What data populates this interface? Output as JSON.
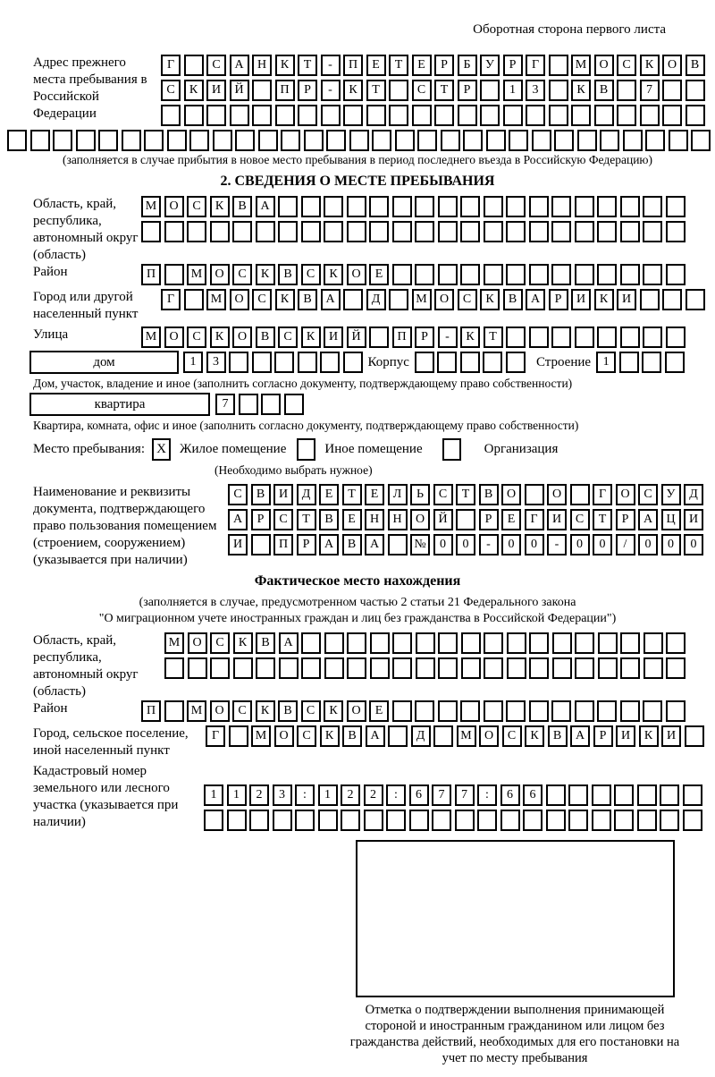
{
  "header": {
    "page_note": "Оборотная сторона первого листа"
  },
  "prev_address": {
    "label": "Адрес прежнего места пребывания в Российской Федерации",
    "rows": [
      {
        "text": "Г САНКТ-ПЕТЕРБУРГ МОСКОВ",
        "cells": 24
      },
      {
        "text": "СКИЙ ПР-КТ СТР 13 КВ 7",
        "cells": 24
      },
      {
        "text": "",
        "cells": 24
      }
    ],
    "overflow_row": {
      "text": "",
      "cells": 31
    },
    "note": "(заполняется в случае прибытия в новое место пребывания в период последнего въезда в Российскую Федерацию)"
  },
  "section2": {
    "title": "2. СВЕДЕНИЯ О МЕСТЕ ПРЕБЫВАНИЯ",
    "oblast": {
      "label": "Область, край, республика, автономный округ (область)",
      "rows": [
        {
          "text": "МОСКВА",
          "cells": 24
        },
        {
          "text": "",
          "cells": 24
        }
      ]
    },
    "rayon": {
      "label": "Район",
      "row": {
        "text": "П МОСКВСКОЕ",
        "cells": 24
      }
    },
    "gorod": {
      "label": "Город или другой населенный пункт",
      "row": {
        "text": "Г МОСКВА Д МОСКВАРИКИ",
        "cells": 24
      }
    },
    "ulitsa": {
      "label": "Улица",
      "row": {
        "text": "МОСКОВСКИЙ ПР-КТ",
        "cells": 24
      }
    },
    "dom": {
      "box_label": "дом",
      "value": {
        "text": "13",
        "cells": 8
      },
      "korpus_label": "Корпус",
      "korpus": {
        "text": "",
        "cells": 5
      },
      "stroenie_label": "Строение",
      "stroenie": {
        "text": "1",
        "cells": 4
      },
      "note": "Дом, участок, владение и иное (заполнить согласно документу, подтверждающему право собственности)"
    },
    "kvartira": {
      "box_label": "квартира",
      "value": {
        "text": "7",
        "cells": 4
      },
      "note": "Квартира, комната, офис и иное (заполнить согласно документу, подтверждающему право собственности)"
    },
    "mesto": {
      "label": "Место пребывания:",
      "options": [
        {
          "label": "Жилое помещение",
          "mark": "X"
        },
        {
          "label": "Иное помещение",
          "mark": ""
        },
        {
          "label": "Организация",
          "mark": ""
        }
      ],
      "note": "(Необходимо выбрать нужное)"
    },
    "doc": {
      "label": "Наименование и реквизиты документа, подтверждающего право пользования помещением (строением, сооружением) (указывается при наличии)",
      "rows": [
        {
          "text": "СВИДЕТЕЛЬСТВО О ГОСУД",
          "cells": 21
        },
        {
          "text": "АРСТВЕННОЙ РЕГИСТРАЦИ",
          "cells": 21
        },
        {
          "text": "И ПРАВА №00-00-00/000",
          "cells": 21
        }
      ]
    }
  },
  "fact": {
    "title": "Фактическое место нахождения",
    "note1": "(заполняется в случае, предусмотренном частью 2 статьи 21 Федерального закона",
    "note2": "\"О миграционном учете иностранных граждан и лиц без гражданства в Российской Федерации\")",
    "oblast": {
      "label": "Область, край, республика, автономный округ (область)",
      "rows": [
        {
          "text": "МОСКВА",
          "cells": 23
        },
        {
          "text": "",
          "cells": 23
        }
      ]
    },
    "rayon": {
      "label": "Район",
      "row": {
        "text": "П МОСКВСКОЕ",
        "cells": 24
      }
    },
    "gorod": {
      "label": "Город, сельское поселение, иной населенный пункт",
      "row": {
        "text": "Г МОСКВА Д МОСКВАРИКИ",
        "cells": 22
      }
    },
    "kadastr": {
      "label": "Кадастровый номер земельного или лесного участка (указывается при наличии)",
      "rows": [
        {
          "text": "1123:122:677:66",
          "cells": 22
        },
        {
          "text": "",
          "cells": 22
        }
      ]
    }
  },
  "footer": {
    "stamp_caption": "Отметка о подтверждении выполнения принимающей стороной и иностранным гражданином или лицом без гражданства действий, необходимых для его постановки на учет по месту пребывания"
  }
}
